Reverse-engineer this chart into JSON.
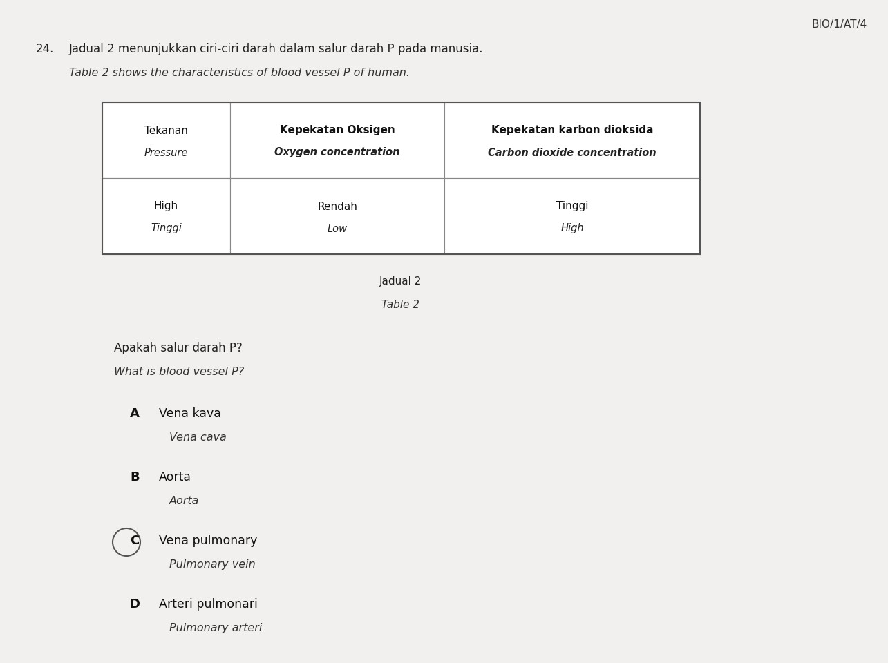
{
  "page_background": "#f2f0ee",
  "header_text": "BIO/1/AT/4",
  "question_number": "24.",
  "question_malay": "Jadual 2 menunjukkan ciri-ciri darah dalam salur darah P pada manusia.",
  "question_english": "Table 2 shows the characteristics of blood vessel P of human.",
  "table_headers": [
    [
      "Tekanan",
      "Pressure"
    ],
    [
      "Kepekatan Oksigen",
      "Oxygen concentration"
    ],
    [
      "Kepekatan karbon dioksida",
      "Carbon dioxide concentration"
    ]
  ],
  "table_row": [
    [
      "High",
      "Tinggi"
    ],
    [
      "Rendah",
      "Low"
    ],
    [
      "Tinggi",
      "High"
    ]
  ],
  "table_caption_malay": "Jadual 2",
  "table_caption_english": "Table 2",
  "follow_up_malay": "Apakah salur darah P?",
  "follow_up_english": "What is blood vessel P?",
  "options": [
    {
      "letter": "A",
      "malay": "Vena kava",
      "english": "Vena cava",
      "circled": false
    },
    {
      "letter": "B",
      "malay": "Aorta",
      "english": "Aorta",
      "circled": false
    },
    {
      "letter": "C",
      "malay": "Vena pulmonary",
      "english": "Pulmonary vein",
      "circled": true
    },
    {
      "letter": "D",
      "malay": "Arteri pulmonari",
      "english": "Pulmonary arteri",
      "circled": false
    }
  ]
}
